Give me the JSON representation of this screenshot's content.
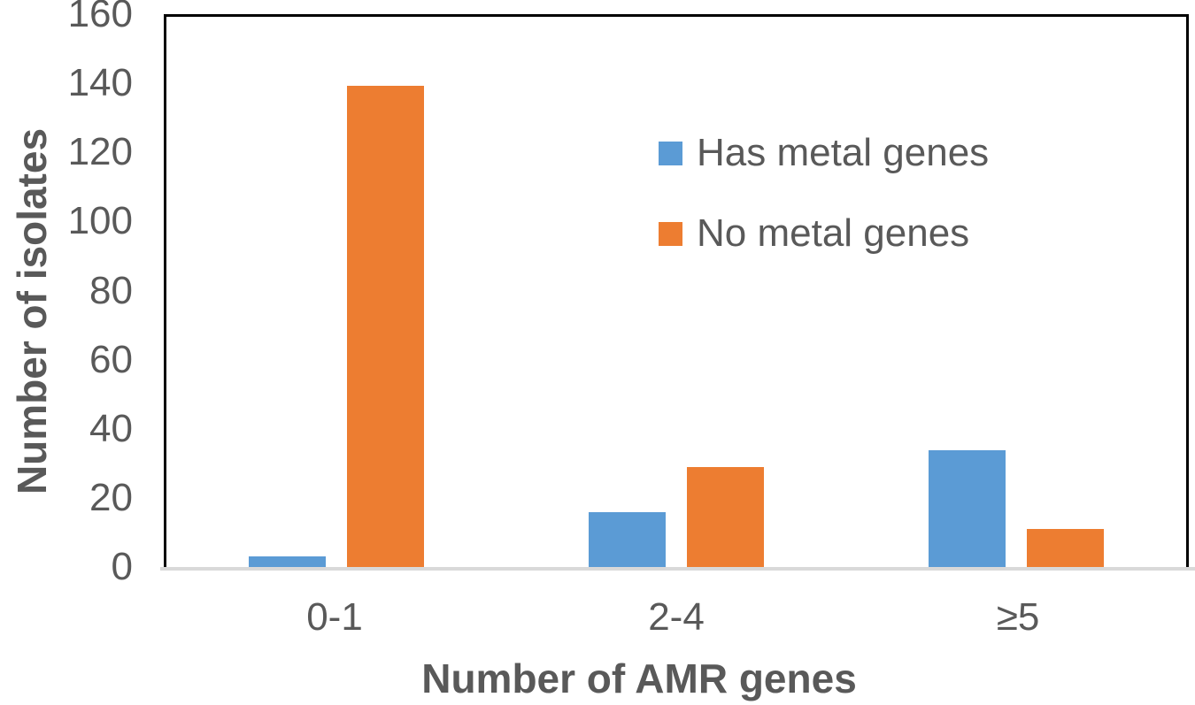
{
  "chart_data": {
    "type": "bar",
    "title": "",
    "categories": [
      "0-1",
      "2-4",
      "≥5"
    ],
    "series": [
      {
        "name": "Has metal genes",
        "color": "#5B9BD5",
        "values": [
          3,
          16,
          34
        ]
      },
      {
        "name": "No metal genes",
        "color": "#ED7D31",
        "values": [
          140,
          29,
          11
        ]
      }
    ],
    "xlabel": "Number of AMR genes",
    "ylabel": "Number of isolates",
    "ylim": [
      0,
      160
    ],
    "yticks": [
      0,
      20,
      40,
      60,
      80,
      100,
      120,
      140,
      160
    ],
    "grid": false,
    "legend_position": "upper-center-inside"
  },
  "colors": {
    "text": "#595959",
    "plot_border": "#000000",
    "baseline": "#D9D9D9",
    "background": "#FFFFFF"
  }
}
